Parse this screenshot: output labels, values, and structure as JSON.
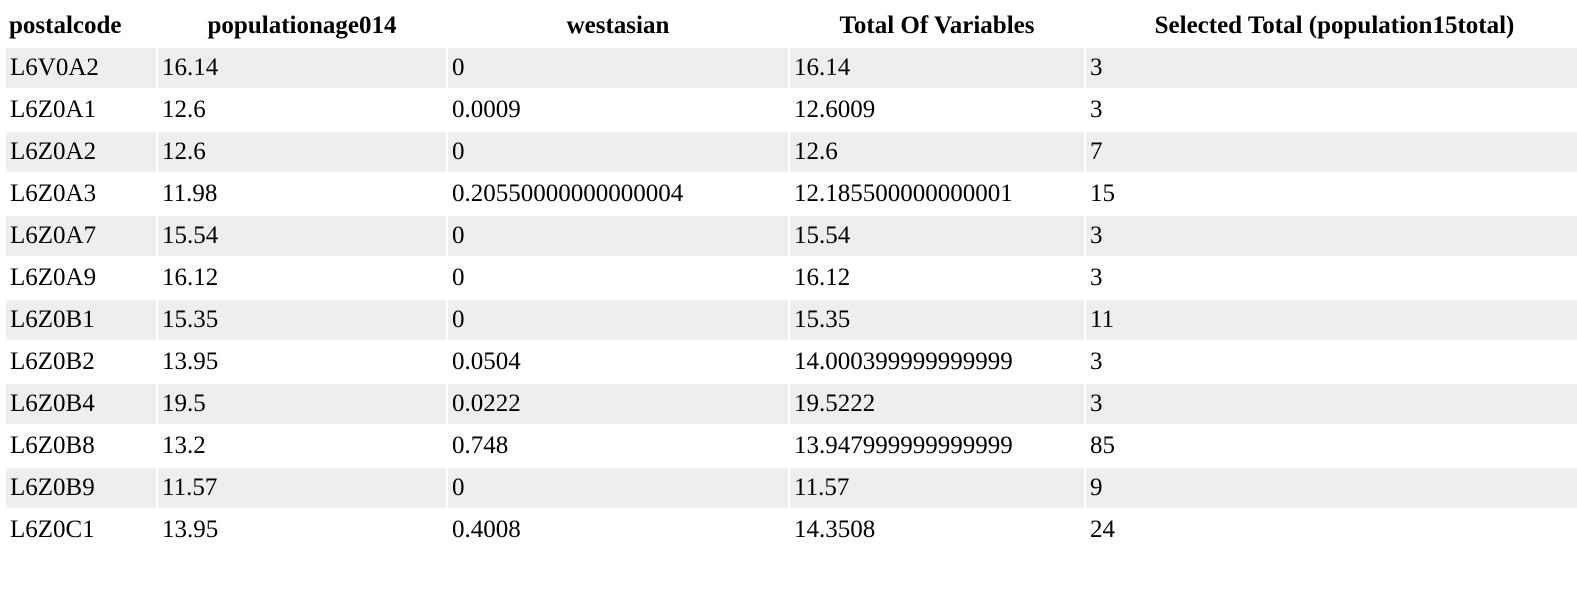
{
  "table": {
    "headers": [
      "postalcode",
      "populationage014",
      "westasian",
      "Total Of Variables",
      "Selected Total (population15total)"
    ],
    "rows": [
      [
        "L6V0A2",
        "16.14",
        "0",
        "16.14",
        "3"
      ],
      [
        "L6Z0A1",
        "12.6",
        "0.0009",
        "12.6009",
        "3"
      ],
      [
        "L6Z0A2",
        "12.6",
        "0",
        "12.6",
        "7"
      ],
      [
        "L6Z0A3",
        "11.98",
        "0.20550000000000004",
        "12.185500000000001",
        "15"
      ],
      [
        "L6Z0A7",
        "15.54",
        "0",
        "15.54",
        "3"
      ],
      [
        "L6Z0A9",
        "16.12",
        "0",
        "16.12",
        "3"
      ],
      [
        "L6Z0B1",
        "15.35",
        "0",
        "15.35",
        "11"
      ],
      [
        "L6Z0B2",
        "13.95",
        "0.0504",
        "14.000399999999999",
        "3"
      ],
      [
        "L6Z0B4",
        "19.5",
        "0.0222",
        "19.5222",
        "3"
      ],
      [
        "L6Z0B8",
        "13.2",
        "0.748",
        "13.947999999999999",
        "85"
      ],
      [
        "L6Z0B9",
        "11.57",
        "0",
        "11.57",
        "9"
      ],
      [
        "L6Z0C1",
        "13.95",
        "0.4008",
        "14.3508",
        "24"
      ]
    ]
  }
}
